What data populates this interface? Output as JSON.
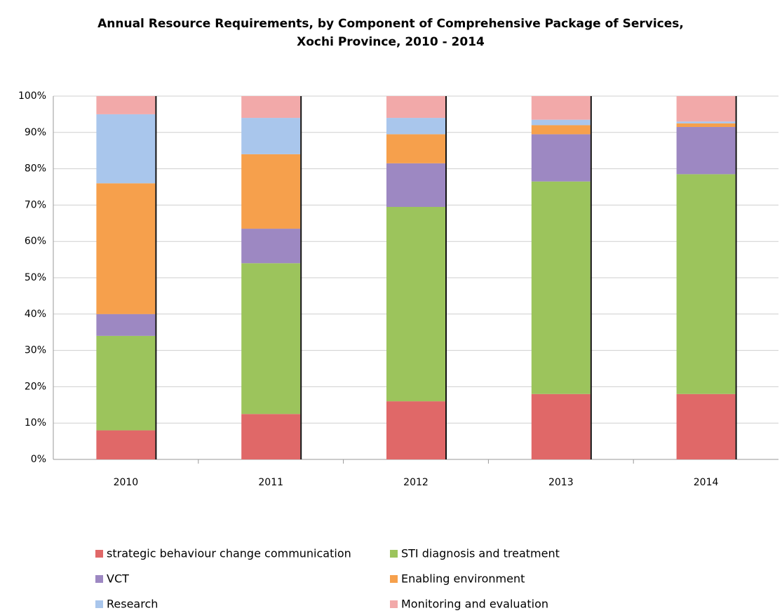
{
  "chart_data": {
    "type": "stacked_bar",
    "title": [
      "Annual Resource Requirements, by Component of Comprehensive Package of Services,",
      "Xochi Province, 2010 - 2014"
    ],
    "categories": [
      "2010",
      "2011",
      "2012",
      "2013",
      "2014"
    ],
    "series": [
      {
        "name": "strategic behaviour change communication",
        "color": "#e06868",
        "values": [
          8,
          12.5,
          16,
          18,
          18
        ]
      },
      {
        "name": "STI diagnosis and treatment",
        "color": "#9cc45c",
        "values": [
          26,
          41.5,
          53.5,
          58.5,
          60.5
        ]
      },
      {
        "name": "VCT",
        "color": "#9d88c2",
        "values": [
          6,
          9.5,
          12,
          13,
          13
        ]
      },
      {
        "name": "Enabling environment",
        "color": "#f6a04c",
        "values": [
          36,
          20.5,
          8,
          2.5,
          1
        ]
      },
      {
        "name": "Research",
        "color": "#a9c6ec",
        "values": [
          19,
          10,
          4.5,
          1.5,
          0.5
        ]
      },
      {
        "name": "Monitoring and evaluation",
        "color": "#f2a9a9",
        "values": [
          5,
          6,
          6,
          6.5,
          7
        ]
      }
    ],
    "ylim": [
      0,
      100
    ],
    "yticks": [
      {
        "value": 0,
        "label": "0%"
      },
      {
        "value": 10,
        "label": "10%"
      },
      {
        "value": 20,
        "label": "20%"
      },
      {
        "value": 30,
        "label": "30%"
      },
      {
        "value": 40,
        "label": "40%"
      },
      {
        "value": 50,
        "label": "50%"
      },
      {
        "value": 60,
        "label": "60%"
      },
      {
        "value": 70,
        "label": "70%"
      },
      {
        "value": 80,
        "label": "80%"
      },
      {
        "value": 90,
        "label": "90%"
      },
      {
        "value": 100,
        "label": "100%"
      }
    ],
    "grid": true,
    "legend": "bottom"
  }
}
